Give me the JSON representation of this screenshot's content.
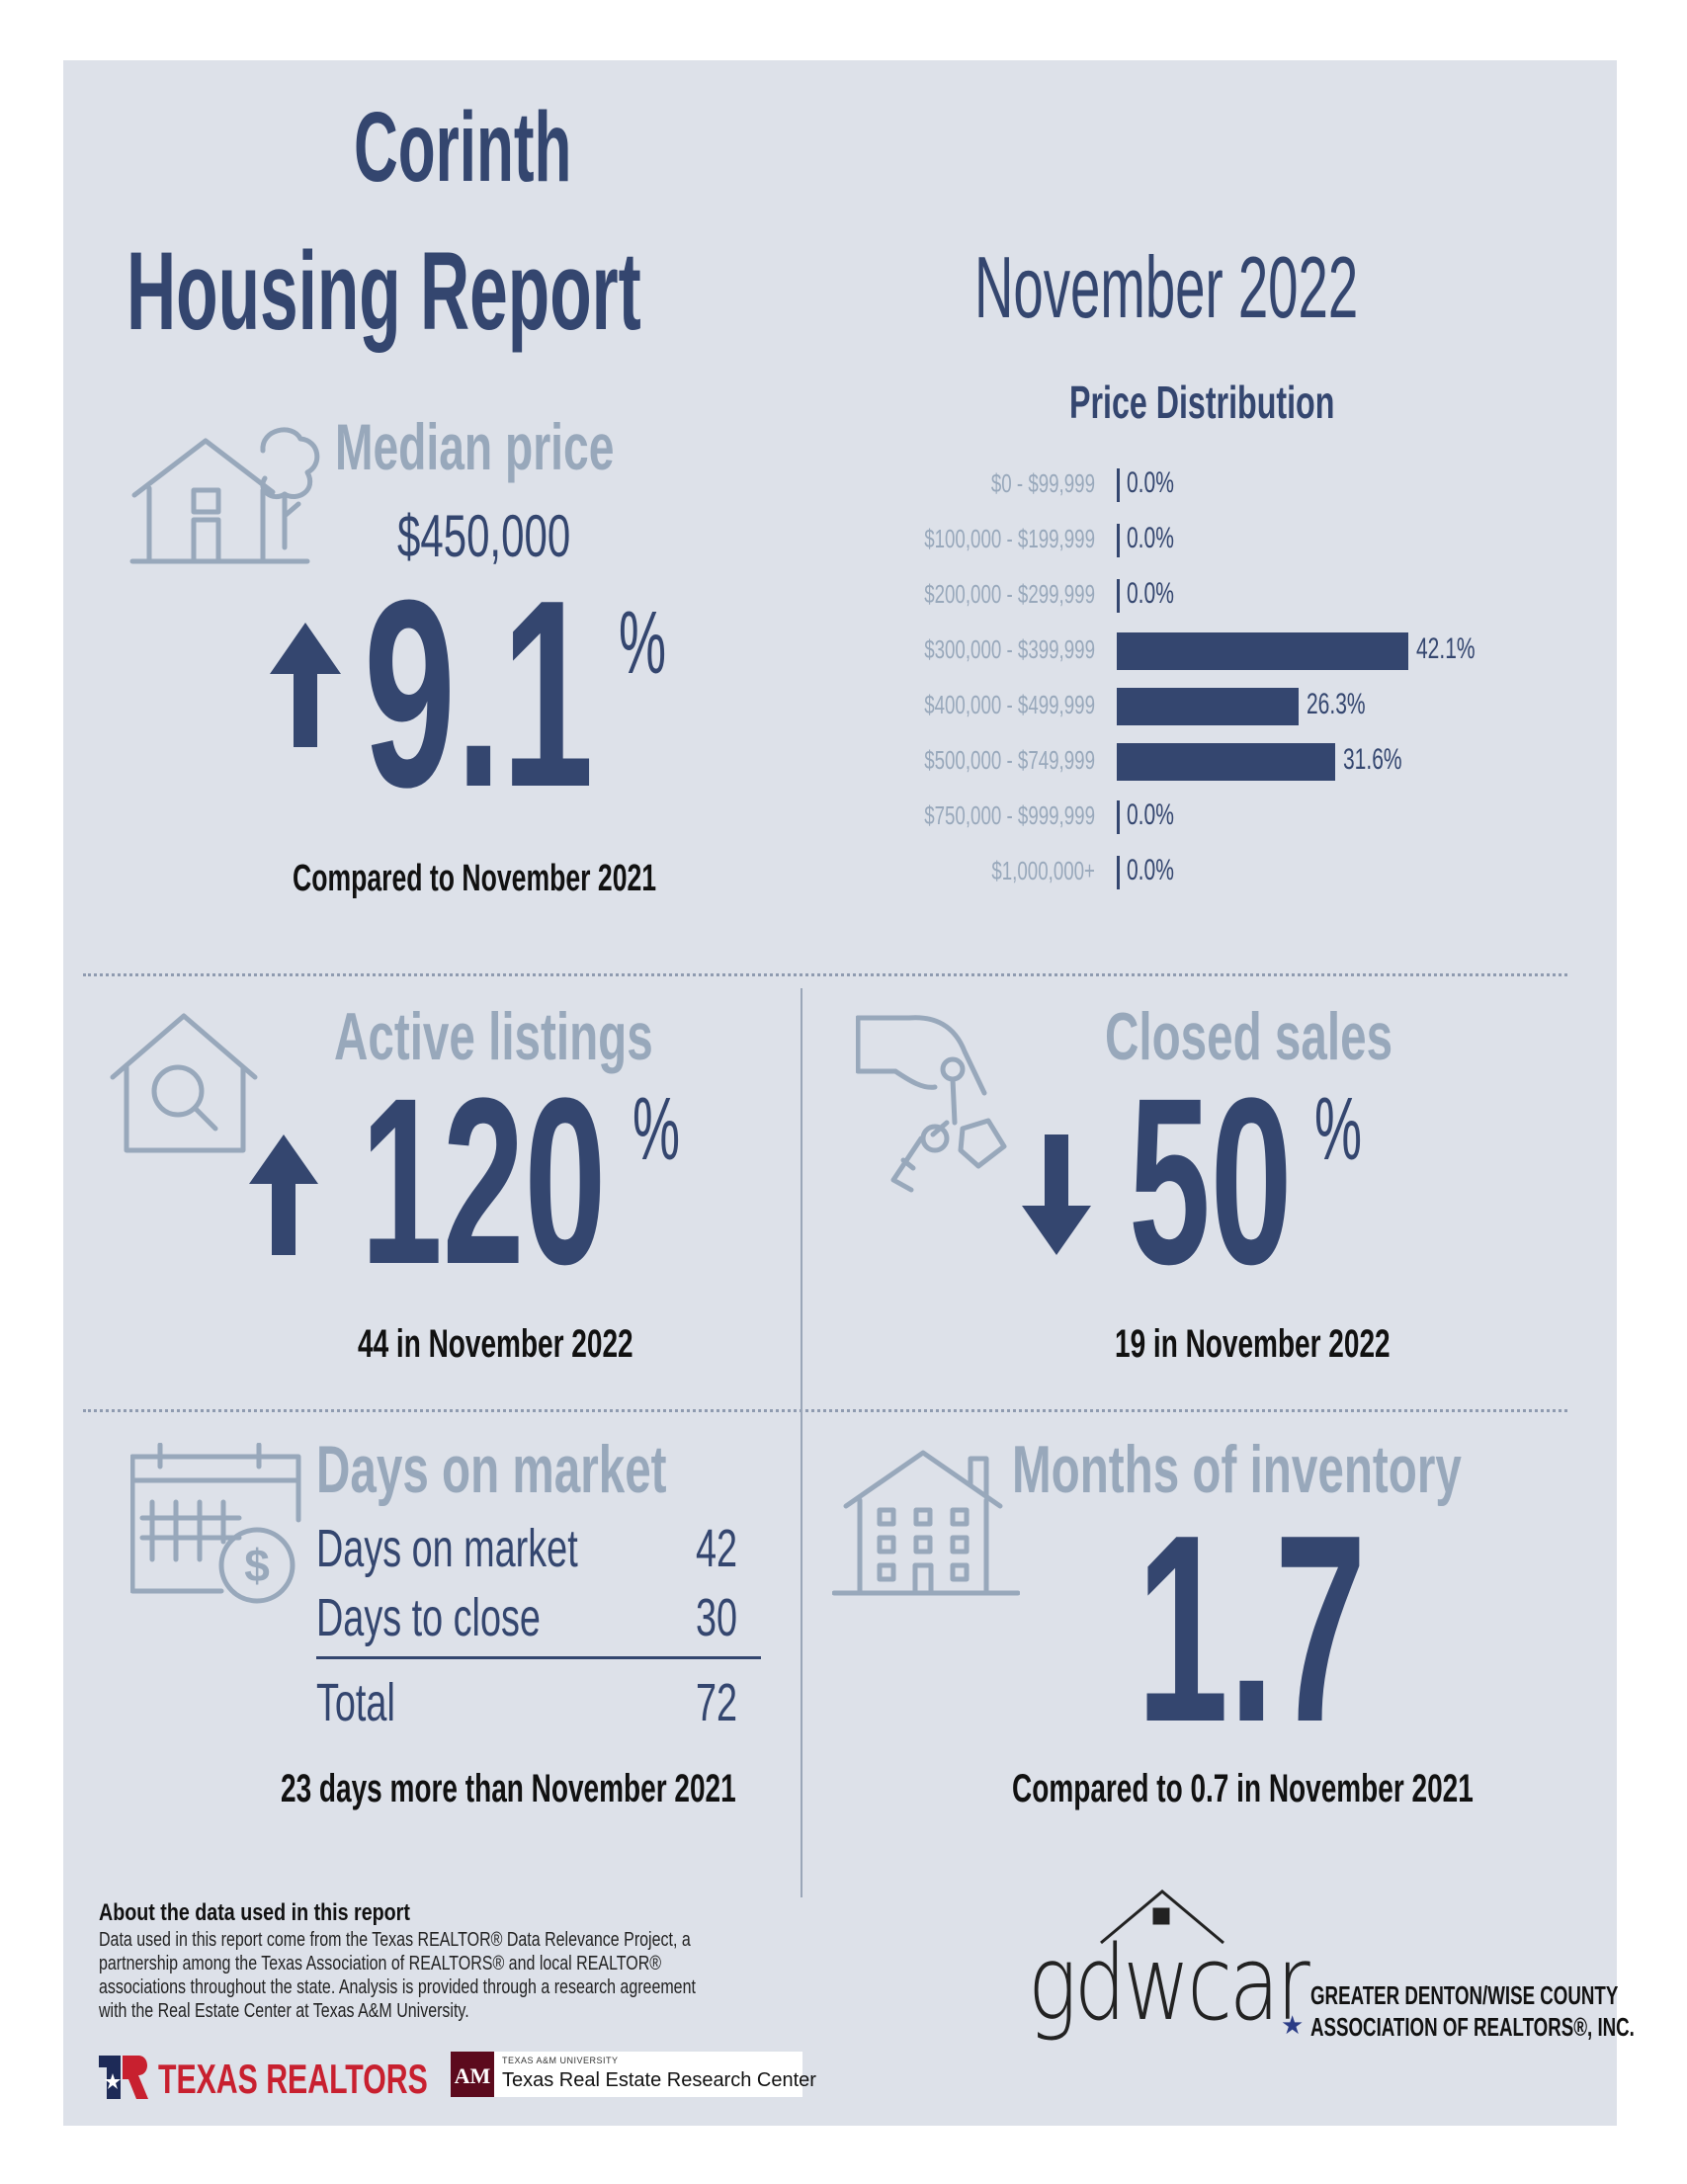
{
  "header": {
    "city": "Corinth",
    "title": "Housing Report",
    "month": "November 2022"
  },
  "median_price": {
    "label": "Median price",
    "value": "$450,000",
    "change": "9.1",
    "change_unit": "%",
    "direction": "up",
    "comparison": "Compared to November 2021",
    "icon": "house-tree-icon"
  },
  "price_distribution": {
    "title": "Price Distribution",
    "rows": [
      {
        "range": "$0 - $99,999",
        "value": "0.0%",
        "pct": 0.0
      },
      {
        "range": "$100,000 - $199,999",
        "value": "0.0%",
        "pct": 0.0
      },
      {
        "range": "$200,000 - $299,999",
        "value": "0.0%",
        "pct": 0.0
      },
      {
        "range": "$300,000 - $399,999",
        "value": "42.1%",
        "pct": 42.1
      },
      {
        "range": "$400,000 - $499,999",
        "value": "26.3%",
        "pct": 26.3
      },
      {
        "range": "$500,000 - $749,999",
        "value": "31.6%",
        "pct": 31.6
      },
      {
        "range": "$750,000 - $999,999",
        "value": "0.0%",
        "pct": 0.0
      },
      {
        "range": "$1,000,000+",
        "value": "0.0%",
        "pct": 0.0
      }
    ]
  },
  "active_listings": {
    "label": "Active listings",
    "change": "120",
    "change_unit": "%",
    "direction": "up",
    "detail": "44 in November 2022",
    "icon": "house-magnifier-icon"
  },
  "closed_sales": {
    "label": "Closed sales",
    "change": "50",
    "change_unit": "%",
    "direction": "down",
    "detail": "19 in November 2022",
    "icon": "hand-keys-icon"
  },
  "days_on_market": {
    "label": "Days on market",
    "rows": [
      {
        "label": "Days on market",
        "value": "42"
      },
      {
        "label": "Days to close",
        "value": "30"
      }
    ],
    "total_label": "Total",
    "total_value": "72",
    "comparison": "23 days more than November 2021",
    "icon": "calendar-dollar-icon"
  },
  "months_inventory": {
    "label": "Months of inventory",
    "value": "1.7",
    "comparison": "Compared to 0.7 in November 2021",
    "icon": "apartment-building-icon"
  },
  "footer": {
    "about_title": "About the data used in this report",
    "about_lines": [
      "Data used in this report come from the Texas REALTOR® Data Relevance Project, a",
      "partnership among the Texas Association of REALTORS® and local REALTOR®",
      "associations throughout the state. Analysis is provided through a research agreement",
      "with the Real Estate Center at Texas A&M University."
    ],
    "texas_realtors": "TEXAS REALTORS",
    "tamu_small": "TEXAS A&M UNIVERSITY",
    "tamu_center": "Texas Real Estate Research Center",
    "gdwcar_logo": "gdwcar",
    "gdwcar_line1": "GREATER DENTON/WISE COUNTY",
    "gdwcar_line2": "ASSOCIATION OF REALTORS®, INC."
  },
  "colors": {
    "navy": "#34466f",
    "muted": "#98a8bb",
    "panel": "#dde1e9"
  }
}
